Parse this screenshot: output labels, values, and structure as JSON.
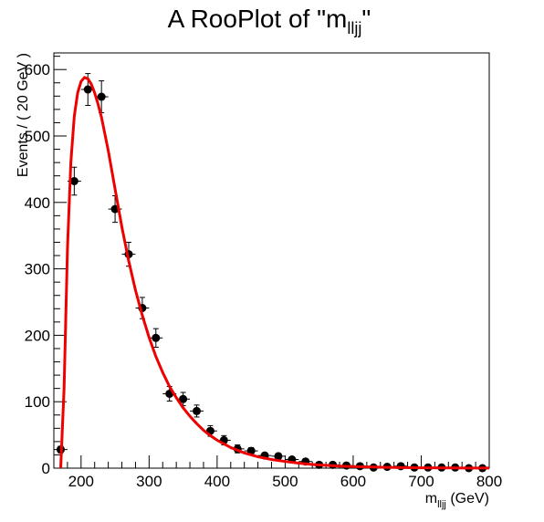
{
  "chart_data": {
    "type": "scatter",
    "title": "A RooPlot of \"m",
    "title_sub": "lljj",
    "title_end": "\"",
    "xlabel": "m",
    "xlabel_sub": "lljj",
    "xlabel_end": " (GeV)",
    "ylabel": "Events / ( 20 GeV )",
    "xlim": [
      160,
      800
    ],
    "ylim": [
      0,
      625
    ],
    "xticks": [
      200,
      300,
      400,
      500,
      600,
      700,
      800
    ],
    "yticks": [
      0,
      100,
      200,
      300,
      400,
      500,
      600
    ],
    "grid": false,
    "bin_width": 20,
    "series": [
      {
        "type": "points",
        "color": "#000000",
        "x": [
          170,
          190,
          210,
          230,
          250,
          270,
          290,
          310,
          330,
          350,
          370,
          390,
          410,
          430,
          450,
          470,
          490,
          510,
          530,
          550,
          570,
          590,
          610,
          630,
          650,
          670,
          690,
          710,
          730,
          750,
          770,
          790
        ],
        "y": [
          28,
          432,
          570,
          559,
          390,
          322,
          241,
          196,
          112,
          104,
          86,
          56,
          42,
          29,
          26,
          19,
          18,
          13,
          10,
          5,
          5,
          4,
          3,
          1,
          2,
          3,
          1,
          1,
          1,
          1,
          0,
          0
        ],
        "yerr": [
          5,
          21,
          24,
          24,
          20,
          18,
          16,
          14,
          11,
          10,
          9,
          8,
          7,
          6,
          5,
          4,
          4,
          4,
          3,
          2,
          2,
          2,
          2,
          1,
          1,
          2,
          1,
          1,
          1,
          1,
          0,
          0
        ]
      },
      {
        "type": "curve",
        "color": "#ee0000",
        "x": [
          170,
          175,
          180,
          185,
          190,
          195,
          200,
          205,
          210,
          215,
          220,
          225,
          230,
          240,
          250,
          260,
          270,
          280,
          290,
          300,
          310,
          320,
          330,
          340,
          350,
          360,
          370,
          380,
          390,
          400,
          420,
          440,
          460,
          480,
          500,
          520,
          540,
          560,
          580,
          600,
          650,
          700,
          750,
          800
        ],
        "y": [
          0,
          120,
          330,
          460,
          530,
          565,
          582,
          588,
          586,
          578,
          565,
          548,
          528,
          478,
          420,
          363,
          312,
          268,
          230,
          197,
          168,
          144,
          123,
          106,
          91,
          78,
          67,
          57,
          49,
          42,
          31,
          23,
          17,
          13,
          10,
          7.5,
          5.5,
          4.2,
          3.2,
          2.4,
          1.2,
          0.6,
          0.3,
          0.15
        ]
      }
    ]
  }
}
